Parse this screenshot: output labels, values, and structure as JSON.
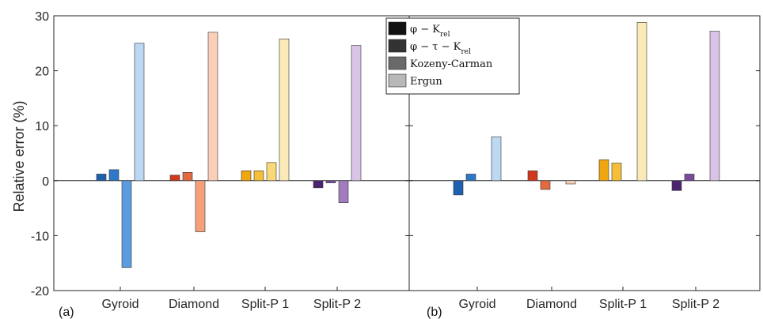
{
  "chart_data": [
    {
      "type": "bar",
      "panel_label": "(a)",
      "ylabel": "Relative error (%)",
      "ylim": [
        -20,
        30
      ],
      "yticks": [
        -20,
        -10,
        0,
        10,
        20,
        30
      ],
      "categories": [
        "Gyroid",
        "Diamond",
        "Split-P 1",
        "Split-P 2"
      ],
      "series": [
        {
          "name": "φ − K_rel",
          "values": [
            1.2,
            1.0,
            1.8,
            -1.3
          ]
        },
        {
          "name": "φ − τ − K_rel",
          "values": [
            2.0,
            1.5,
            1.8,
            -0.4
          ]
        },
        {
          "name": "Kozeny-Carman",
          "values": [
            -15.8,
            -9.3,
            3.3,
            -4.0
          ]
        },
        {
          "name": "Ergun",
          "values": [
            25.0,
            27.0,
            25.8,
            24.6
          ]
        }
      ],
      "legend": {
        "placement": "top-right"
      }
    },
    {
      "type": "bar",
      "panel_label": "(b)",
      "ylim": [
        -20,
        30
      ],
      "categories": [
        "Gyroid",
        "Diamond",
        "Split-P 1",
        "Split-P 2"
      ],
      "series": [
        {
          "name": "φ − K_rel",
          "values": [
            -2.6,
            1.8,
            3.8,
            -1.8
          ]
        },
        {
          "name": "φ − τ − K_rel",
          "values": [
            1.2,
            -1.6,
            3.2,
            1.2
          ]
        },
        {
          "name": "Kozeny-Carman",
          "values": [
            0,
            0,
            0,
            0
          ]
        },
        {
          "name": "Ergun",
          "values": [
            8.0,
            -0.6,
            28.8,
            27.2
          ]
        }
      ]
    }
  ],
  "legend_items": [
    {
      "label": "φ − K",
      "sub": "rel",
      "swatch": "#111111"
    },
    {
      "label": "φ − τ − K",
      "sub": "rel",
      "swatch": "#333333"
    },
    {
      "label": "Kozeny-Carman",
      "sub": "",
      "swatch": "#6a6a6a"
    },
    {
      "label": "Ergun",
      "sub": "",
      "swatch": "#b8b8b8"
    }
  ],
  "colors": {
    "Gyroid": [
      "#1f5fb0",
      "#2f78c8",
      "#5b9be0",
      "#bcd8f2"
    ],
    "Diamond": [
      "#d03a1c",
      "#e26a40",
      "#f5a07a",
      "#f9cfba"
    ],
    "Split-P 1": [
      "#f0a60e",
      "#f5bf3a",
      "#f9d878",
      "#fbe9b8"
    ],
    "Split-P 2": [
      "#4b2470",
      "#7a4a9c",
      "#a37cbf",
      "#d9c4e6"
    ]
  }
}
